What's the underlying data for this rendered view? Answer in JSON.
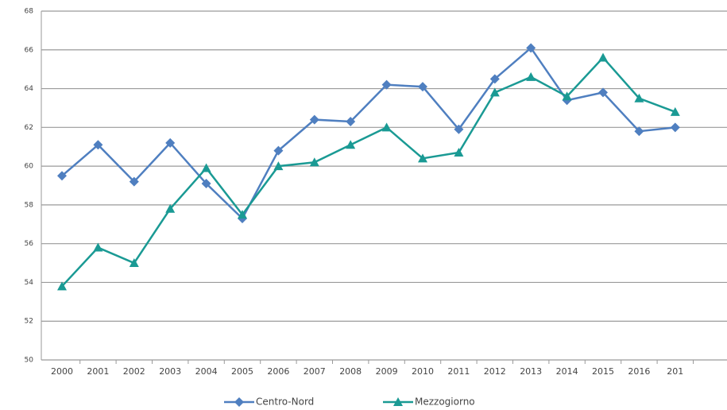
{
  "chart_data": {
    "type": "line",
    "categories": [
      "2000",
      "2001",
      "2002",
      "2003",
      "2004",
      "2005",
      "2006",
      "2007",
      "2008",
      "2009",
      "2010",
      "2011",
      "2012",
      "2013",
      "2014",
      "2015",
      "2016",
      "201"
    ],
    "series": [
      {
        "name": "Centro-Nord",
        "color": "#4f7fc0",
        "marker": "diamond",
        "values": [
          59.5,
          61.1,
          59.2,
          61.2,
          59.1,
          57.3,
          60.8,
          62.4,
          62.3,
          64.2,
          64.1,
          61.9,
          64.5,
          66.1,
          63.4,
          63.8,
          61.8,
          62.0
        ]
      },
      {
        "name": "Mezzogiorno",
        "color": "#1a9a94",
        "marker": "triangle",
        "values": [
          53.8,
          55.8,
          55.0,
          57.8,
          59.9,
          57.5,
          60.0,
          60.2,
          61.1,
          62.0,
          60.4,
          60.7,
          63.8,
          64.6,
          63.6,
          65.6,
          63.5,
          62.8
        ]
      }
    ],
    "ylim": [
      50,
      68
    ],
    "yticks": [
      50,
      52,
      54,
      56,
      58,
      60,
      62,
      64,
      66,
      68
    ],
    "grid": true,
    "legend": "bottom"
  }
}
